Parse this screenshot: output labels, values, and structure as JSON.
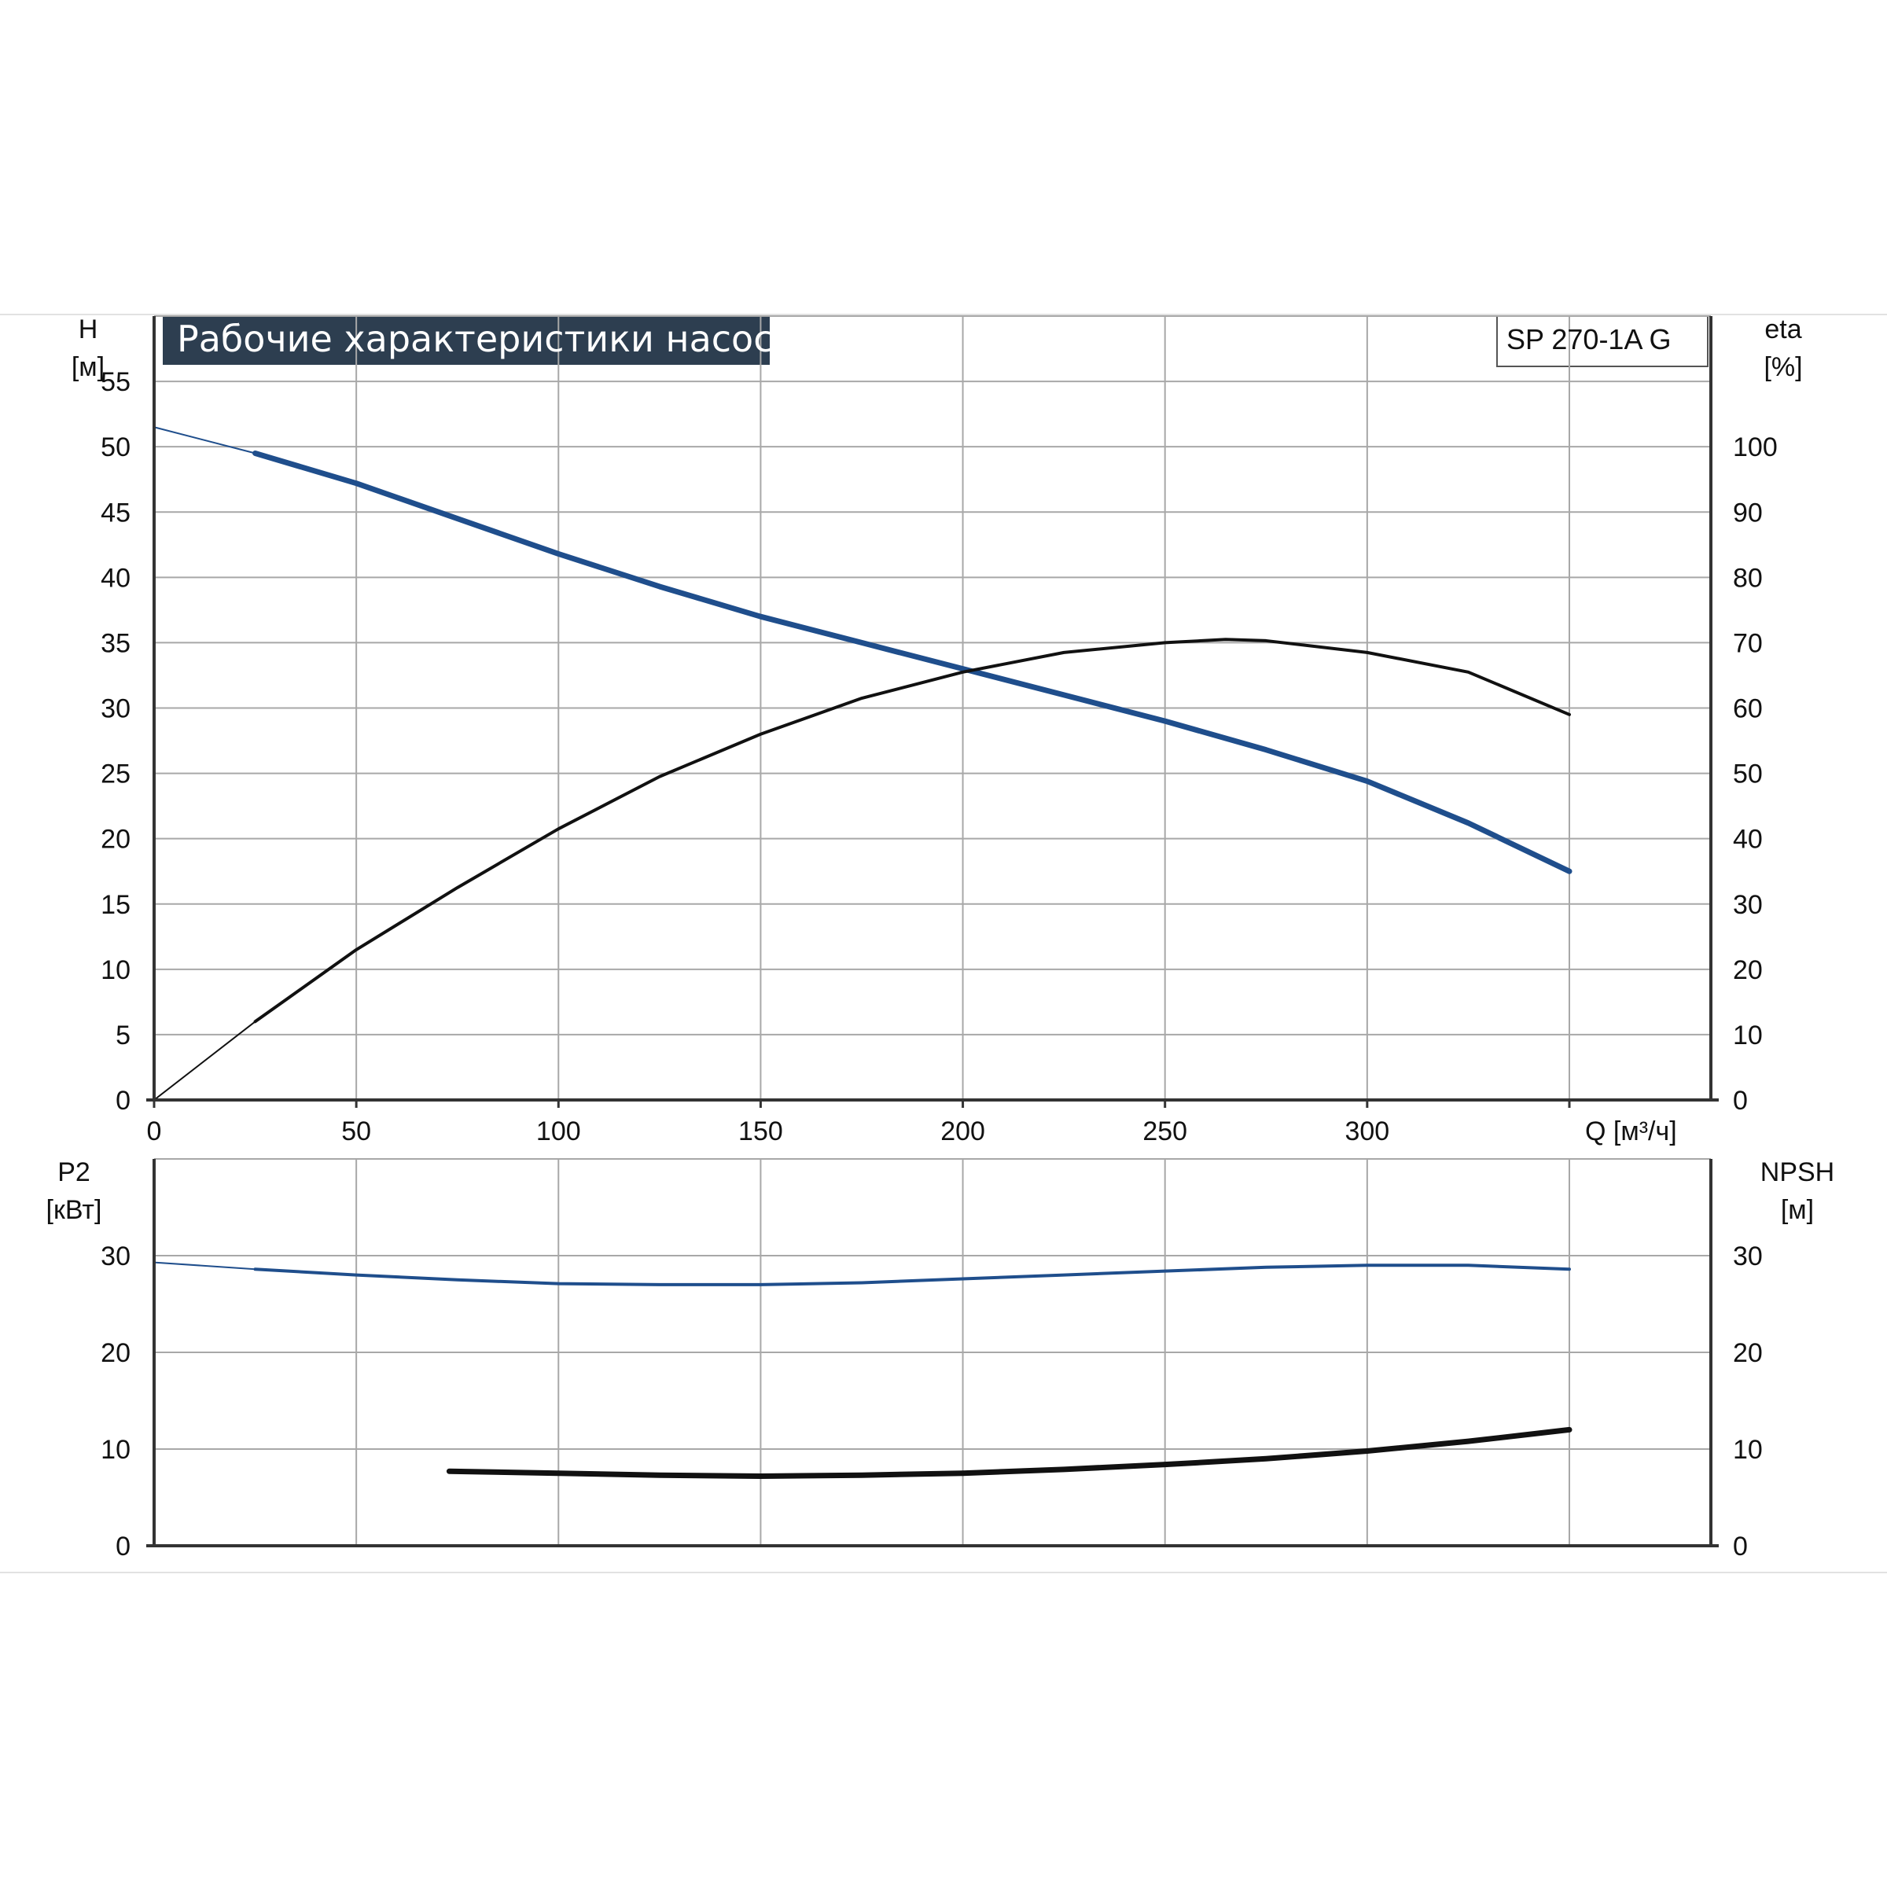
{
  "colors": {
    "grid": "#a8a8a8",
    "axis": "#333333",
    "blue_curve": "#1f4e8c",
    "black_curve": "#111111",
    "title_bg": "#2d3e50",
    "separator": "#e2e2e2"
  },
  "chart_data": [
    {
      "type": "line",
      "title": "Рабочие характеристики насоса",
      "model_label": "SP 270-1A G",
      "x_label": "Q [м³/ч]",
      "x_ticks": [
        "0",
        "50",
        "100",
        "150",
        "200",
        "250",
        "300"
      ],
      "xlim": [
        0,
        385
      ],
      "left_axis": {
        "label_line1": "H",
        "label_line2": "[м]",
        "ticks": [
          "0",
          "5",
          "10",
          "15",
          "20",
          "25",
          "30",
          "35",
          "40",
          "45",
          "50",
          "55"
        ],
        "ylim": [
          0,
          60
        ]
      },
      "right_axis": {
        "label_line1": "eta",
        "label_line2": "[%]",
        "ticks": [
          "0",
          "10",
          "20",
          "30",
          "40",
          "50",
          "60",
          "70",
          "80",
          "90",
          "100"
        ],
        "ylim": [
          0,
          120
        ]
      },
      "grid": true,
      "series": [
        {
          "key": "head",
          "axis": "left",
          "color": "#1f4e8c",
          "x": [
            0,
            25,
            50,
            75,
            100,
            125,
            150,
            175,
            200,
            225,
            250,
            275,
            300,
            325,
            350
          ],
          "y": [
            51.5,
            49.5,
            47.2,
            44.5,
            41.8,
            39.3,
            37.0,
            35.0,
            33.0,
            31.0,
            29.0,
            26.8,
            24.4,
            21.2,
            17.5
          ],
          "thin_until": 25
        },
        {
          "key": "efficiency",
          "axis": "right",
          "color": "#111111",
          "x": [
            0,
            25,
            50,
            75,
            100,
            125,
            150,
            175,
            200,
            225,
            250,
            265,
            275,
            300,
            325,
            350
          ],
          "y": [
            0,
            12,
            23,
            32.5,
            41.5,
            49.5,
            56,
            61.5,
            65.5,
            68.5,
            70,
            70.5,
            70.3,
            68.5,
            65.5,
            59
          ],
          "thin_until": 25
        }
      ]
    },
    {
      "type": "line",
      "x_ticks_shared": true,
      "xlim": [
        0,
        385
      ],
      "left_axis": {
        "label_line1": "P2",
        "label_line2": "[кВт]",
        "ticks": [
          "0",
          "10",
          "20",
          "30"
        ],
        "ylim": [
          0,
          40
        ]
      },
      "right_axis": {
        "label_line1": "NPSH",
        "label_line2": "[м]",
        "ticks": [
          "0",
          "10",
          "20",
          "30"
        ],
        "ylim": [
          0,
          40
        ]
      },
      "grid": true,
      "series": [
        {
          "key": "power",
          "axis": "left",
          "color": "#1f4e8c",
          "x": [
            0,
            25,
            50,
            75,
            100,
            125,
            150,
            175,
            200,
            225,
            250,
            275,
            300,
            325,
            350
          ],
          "y": [
            29.3,
            28.6,
            28.0,
            27.5,
            27.1,
            27.0,
            27.0,
            27.2,
            27.6,
            28.0,
            28.4,
            28.8,
            29.0,
            29.0,
            28.6
          ],
          "thin_until": 25
        },
        {
          "key": "npsh",
          "axis": "right",
          "color": "#111111",
          "x": [
            73,
            100,
            125,
            150,
            175,
            200,
            225,
            250,
            275,
            300,
            325,
            350
          ],
          "y": [
            7.7,
            7.5,
            7.3,
            7.2,
            7.3,
            7.5,
            7.9,
            8.4,
            9.0,
            9.8,
            10.8,
            12.0
          ]
        }
      ]
    }
  ]
}
